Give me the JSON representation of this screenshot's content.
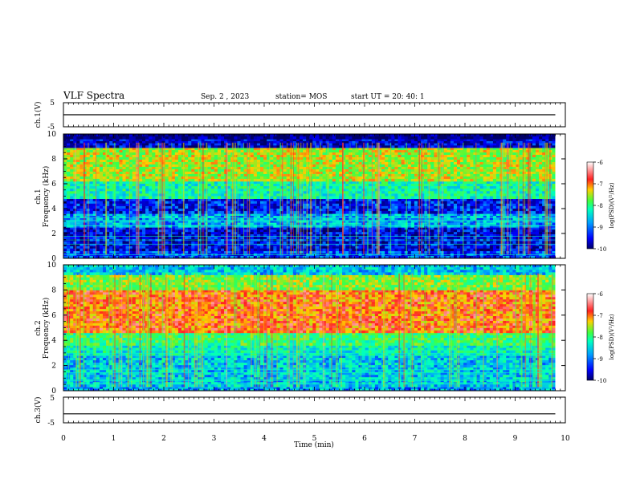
{
  "header": {
    "title": "VLF Spectra",
    "date": "Sep. 2 , 2023",
    "station": "station= MOS",
    "start_ut": "start UT =  20: 40: 1"
  },
  "panels": {
    "ch1v_label": "ch.1(V)",
    "ch1_label": "ch.1",
    "ch2_label": "ch.2",
    "ch3v_label": "ch.3(V)",
    "freq_label": "Frequency (kHz)",
    "x_label": "Time (min)",
    "colorbar_label": "log(PSD)(V²/Hz)"
  },
  "colors": {
    "scale": [
      "#000066",
      "#0000ff",
      "#00a0ff",
      "#00ffc0",
      "#40ff40",
      "#ffd000",
      "#ff2020",
      "#ffffff"
    ]
  },
  "chart_data": [
    {
      "type": "line",
      "name": "ch.1(V)",
      "ylabel": "ch.1(V)",
      "ylim": [
        -5,
        5
      ],
      "yticks": [
        "5",
        "-5"
      ],
      "xlim": [
        0,
        10
      ],
      "series": [
        {
          "x": [
            0,
            9.8
          ],
          "y": [
            0,
            0
          ]
        }
      ]
    },
    {
      "type": "heatmap",
      "name": "ch.1",
      "ylabel": "Frequency (kHz)",
      "xlabel": "Time (min)",
      "xlim": [
        0,
        10
      ],
      "ylim": [
        0,
        10
      ],
      "yticks": [
        "0",
        "2",
        "4",
        "6",
        "8",
        "10"
      ],
      "colorbar": {
        "range": [
          -10,
          -6
        ],
        "ticks": [
          "-6",
          "-7",
          "-8",
          "-9",
          "-10"
        ],
        "label": "log(PSD)(V²/Hz)"
      },
      "data_end_min": 9.8,
      "bands": [
        {
          "f": [
            0,
            0.6
          ],
          "level": -9.2
        },
        {
          "f": [
            0.6,
            2.5
          ],
          "level": -9.5
        },
        {
          "f": [
            2.5,
            3.6
          ],
          "level": -8.8
        },
        {
          "f": [
            3.6,
            4.8
          ],
          "level": -9.4
        },
        {
          "f": [
            4.8,
            6.2
          ],
          "level": -8.2
        },
        {
          "f": [
            6.2,
            8.9
          ],
          "level": -7.4
        },
        {
          "f": [
            8.9,
            9.6
          ],
          "level": -9.6
        },
        {
          "f": [
            9.6,
            10
          ],
          "level": -10
        }
      ]
    },
    {
      "type": "heatmap",
      "name": "ch.2",
      "ylabel": "Frequency (kHz)",
      "xlabel": "Time (min)",
      "xlim": [
        0,
        10
      ],
      "ylim": [
        0,
        10
      ],
      "yticks": [
        "0",
        "2",
        "4",
        "6",
        "8",
        "10"
      ],
      "colorbar": {
        "range": [
          -10,
          -6
        ],
        "ticks": [
          "-6",
          "-7",
          "-8",
          "-9",
          "-10"
        ],
        "label": "log(PSD)(V²/Hz)"
      },
      "data_end_min": 9.8,
      "bands": [
        {
          "f": [
            0,
            0.3
          ],
          "level": -8.8
        },
        {
          "f": [
            0.3,
            2.8
          ],
          "level": -8.6
        },
        {
          "f": [
            2.8,
            3.6
          ],
          "level": -8.3
        },
        {
          "f": [
            3.6,
            4.6
          ],
          "level": -7.9
        },
        {
          "f": [
            4.6,
            8.0
          ],
          "level": -6.8
        },
        {
          "f": [
            8.0,
            9.2
          ],
          "level": -7.6
        },
        {
          "f": [
            9.2,
            10
          ],
          "level": -8.6
        }
      ]
    },
    {
      "type": "line",
      "name": "ch.3(V)",
      "ylabel": "ch.3(V)",
      "xlabel": "Time (min)",
      "ylim": [
        -5,
        5
      ],
      "yticks": [
        "5",
        "-5"
      ],
      "xlim": [
        0,
        10
      ],
      "xticks": [
        "0",
        "1",
        "2",
        "3",
        "4",
        "5",
        "6",
        "7",
        "8",
        "9",
        "10"
      ],
      "series": [
        {
          "x": [
            0,
            9.8
          ],
          "y": [
            -1.5,
            -1.5
          ]
        }
      ]
    }
  ]
}
